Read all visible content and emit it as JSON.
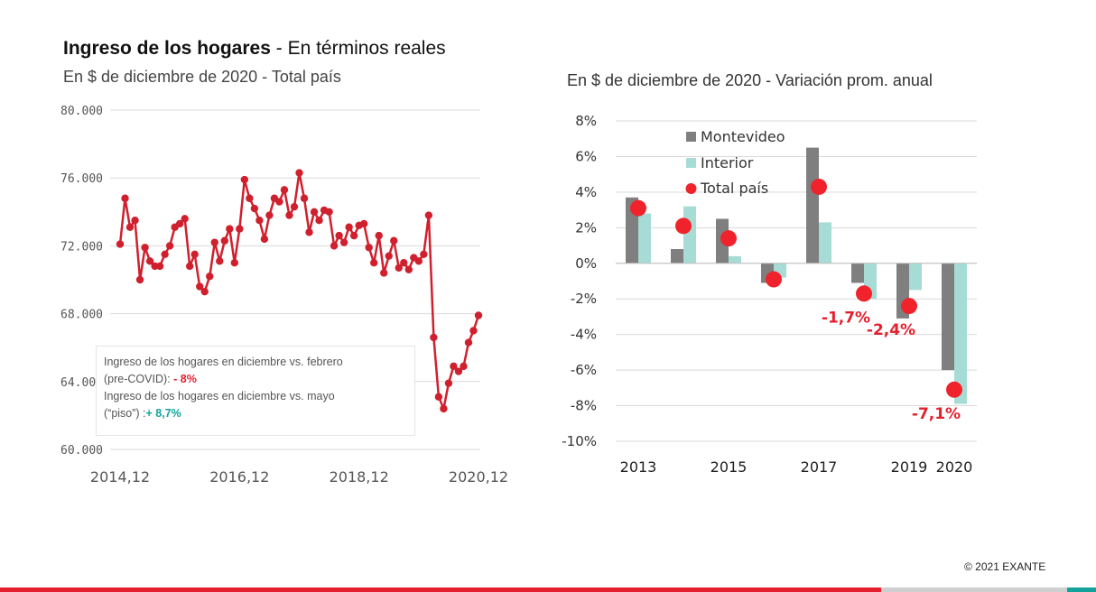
{
  "left_chart": {
    "title_bold": "Ingreso de los hogares",
    "title_rest": "- En términos reales",
    "subtitle": "En $ de diciembre de 2020 - Total país",
    "note": {
      "line1": "Ingreso de los hogares en diciembre vs. febrero",
      "line2_prefix": "(pre-COVID):",
      "line2_value": "- 8%",
      "line3": "Ingreso de los hogares en diciembre vs. mayo",
      "line4_prefix": "(“piso”) :",
      "line4_value": "+ 8,7%"
    }
  },
  "right_chart": {
    "subtitle": "En $ de diciembre de 2020 - Variación prom. anual"
  },
  "footer": {
    "copyright": "© 2021 EXANTE"
  },
  "colors": {
    "line": "#d0202e",
    "montevideo": "#7f7f7f",
    "interior": "#a6dcd5",
    "total": "#f0232d",
    "accent_red": "#e5202e",
    "accent_teal": "#12a39a"
  },
  "chart_data": [
    {
      "type": "line",
      "series_name": "",
      "x_ticks": [
        "2014,12",
        "2016,12",
        "2018,12",
        "2020,12"
      ],
      "y_ticks": [
        "60.000",
        "64.000",
        "68.000",
        "72.000",
        "76.000",
        "80.000"
      ],
      "ylim": [
        60000,
        80000
      ],
      "grid": "horizontal",
      "y": [
        72100,
        74800,
        73100,
        73500,
        70000,
        71900,
        71100,
        70800,
        70800,
        71500,
        72000,
        73100,
        73300,
        73600,
        70800,
        71500,
        69600,
        69300,
        70200,
        72200,
        71100,
        72300,
        73000,
        71000,
        73000,
        75900,
        74800,
        74200,
        73500,
        72400,
        73800,
        74800,
        74600,
        75300,
        73800,
        74300,
        76300,
        74800,
        72800,
        74000,
        73500,
        74100,
        74000,
        72000,
        72600,
        72200,
        73100,
        72600,
        73200,
        73300,
        71900,
        71000,
        72600,
        70400,
        71400,
        72300,
        70700,
        71000,
        70600,
        71300,
        71100,
        71500,
        73800,
        66600,
        63100,
        62400,
        63900,
        64900,
        64600,
        64900,
        66300,
        67000,
        67900
      ]
    },
    {
      "type": "bar",
      "categories": [
        "2013",
        "2014",
        "2015",
        "2016",
        "2017",
        "2018",
        "2019",
        "2020"
      ],
      "x_tick_labels": [
        "2013",
        "",
        "2015",
        "",
        "2017",
        "",
        "2019",
        "2020"
      ],
      "y_ticks": [
        "-10%",
        "-8%",
        "-6%",
        "-4%",
        "-2%",
        "0%",
        "2%",
        "4%",
        "6%",
        "8%"
      ],
      "ylim": [
        -10,
        8
      ],
      "legend_position": "top-left",
      "series": [
        {
          "name": "Montevideo",
          "kind": "bar",
          "values": [
            3.7,
            0.8,
            2.5,
            -1.1,
            6.5,
            -1.1,
            -3.1,
            -6.0
          ]
        },
        {
          "name": "Interior",
          "kind": "bar",
          "values": [
            2.8,
            3.2,
            0.4,
            -0.8,
            2.3,
            -2.0,
            -1.5,
            -7.9
          ]
        },
        {
          "name": "Total país",
          "kind": "marker",
          "values": [
            3.1,
            2.1,
            1.4,
            -0.9,
            4.3,
            -1.7,
            -2.4,
            -7.1
          ]
        }
      ],
      "annotations": [
        {
          "category": "2018",
          "text": "-1,7%"
        },
        {
          "category": "2019",
          "text": "-2,4%"
        },
        {
          "category": "2020",
          "text": "-7,1%"
        }
      ]
    }
  ]
}
